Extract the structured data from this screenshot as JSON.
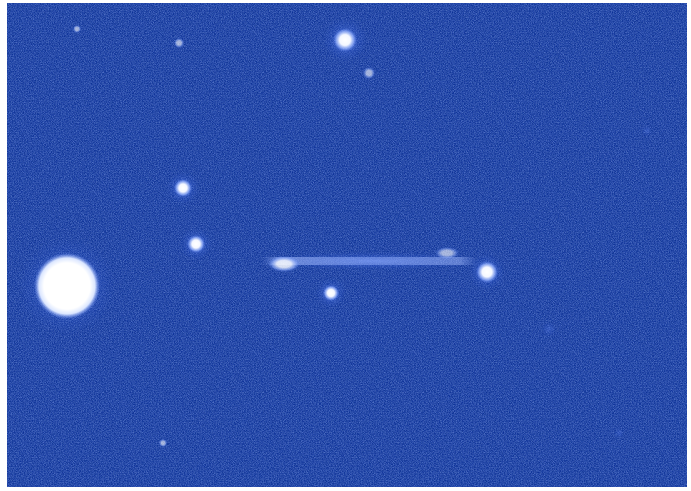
{
  "image": {
    "subject": "astronomical-field",
    "palette": {
      "background": "#0a2f9a",
      "background_dark": "#061d6b",
      "noise_light": "#3b66d6",
      "star_core": "#ffffff",
      "star_halo": "#8fb0ff"
    },
    "objects": [
      {
        "kind": "bright-star",
        "name": "bright-star-left"
      },
      {
        "kind": "star",
        "name": "star-top"
      },
      {
        "kind": "star",
        "name": "star-mid-left-upper"
      },
      {
        "kind": "star",
        "name": "star-mid-left-lower"
      },
      {
        "kind": "star",
        "name": "star-right-of-streak"
      },
      {
        "kind": "star",
        "name": "star-below-streak"
      },
      {
        "kind": "streak",
        "name": "faint-linear-trail"
      }
    ]
  }
}
